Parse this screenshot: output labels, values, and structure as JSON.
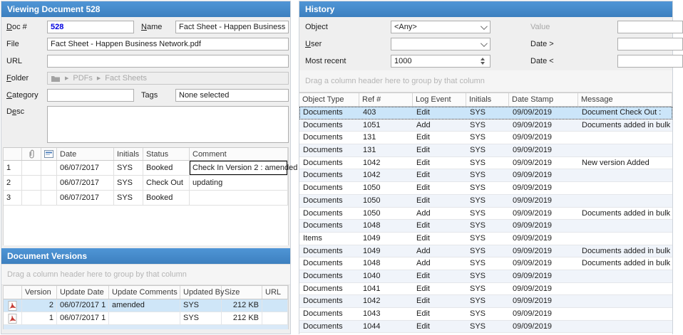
{
  "colors": {
    "titlebar_blue": "#3E86C6",
    "selection_blue": "#CBE5F9",
    "alt_row_blue": "#F0F4FA",
    "doc_number_blue": "#0000E0",
    "pdf_icon_red": "#C43C35"
  },
  "icons": {
    "breadcrumb_arrow": "▶"
  },
  "left_panel": {
    "title": "Viewing Document 528",
    "form": {
      "doc_label": "Doc #",
      "doc_value": "528",
      "name_label": "Name",
      "name_value": "Fact Sheet - Happen Business",
      "file_label": "File",
      "file_value": "Fact Sheet - Happen Business Network.pdf",
      "url_label": "URL",
      "url_value": "",
      "folder_label": "Folder",
      "folder_breadcrumb": [
        "PDFs",
        "Fact Sheets"
      ],
      "category_label": "Category",
      "category_value": "",
      "tags_label": "Tags",
      "tags_value": "None selected",
      "desc_label": "Desc",
      "desc_value": ""
    },
    "status_grid": {
      "headers": {
        "date": "Date",
        "initials": "Initials",
        "status": "Status",
        "comment": "Comment"
      },
      "rows": [
        {
          "num": "1",
          "date": "06/07/2017",
          "initials": "SYS",
          "status": "Booked",
          "comment": "Check In Version 2 : amended"
        },
        {
          "num": "2",
          "date": "06/07/2017",
          "initials": "SYS",
          "status": "Check Out",
          "comment": "updating"
        },
        {
          "num": "3",
          "date": "06/07/2017",
          "initials": "SYS",
          "status": "Booked",
          "comment": ""
        }
      ]
    },
    "versions": {
      "title": "Document Versions",
      "drag_hint": "Drag a column header here to group by that column",
      "headers": {
        "version": "Version",
        "update_date": "Update Date",
        "update_comments": "Update Comments",
        "updated_by": "Updated By",
        "size": "Size",
        "url": "URL"
      },
      "rows": [
        {
          "version": "2",
          "update_date": "06/07/2017 1",
          "update_comments": "amended",
          "updated_by": "SYS",
          "size": "212 KB",
          "url": ""
        },
        {
          "version": "1",
          "update_date": "06/07/2017 1",
          "update_comments": "",
          "updated_by": "SYS",
          "size": "212 KB",
          "url": ""
        }
      ]
    }
  },
  "right_panel": {
    "title": "History",
    "filters": {
      "object_label": "Object",
      "object_value": "<Any>",
      "user_label": "User",
      "user_value": "",
      "most_recent_label": "Most recent",
      "most_recent_value": "1000",
      "value_label": "Value",
      "value_value": "",
      "date_gt_label": "Date >",
      "date_gt_value": "",
      "date_lt_label": "Date <",
      "date_lt_value": ""
    },
    "drag_hint": "Drag a column header here to group by that column",
    "grid": {
      "headers": {
        "object_type": "Object Type",
        "ref": "Ref #",
        "log_event": "Log Event",
        "initials": "Initials",
        "date_stamp": "Date Stamp",
        "message": "Message"
      },
      "rows": [
        {
          "object_type": "Documents",
          "ref": "403",
          "log_event": "Edit",
          "initials": "SYS",
          "date_stamp": "09/09/2019",
          "message": "Document Check Out :"
        },
        {
          "object_type": "Documents",
          "ref": "1051",
          "log_event": "Add",
          "initials": "SYS",
          "date_stamp": "09/09/2019",
          "message": "Documents added in bulk"
        },
        {
          "object_type": "Documents",
          "ref": "131",
          "log_event": "Edit",
          "initials": "SYS",
          "date_stamp": "09/09/2019",
          "message": ""
        },
        {
          "object_type": "Documents",
          "ref": "131",
          "log_event": "Edit",
          "initials": "SYS",
          "date_stamp": "09/09/2019",
          "message": ""
        },
        {
          "object_type": "Documents",
          "ref": "1042",
          "log_event": "Edit",
          "initials": "SYS",
          "date_stamp": "09/09/2019",
          "message": "New version Added"
        },
        {
          "object_type": "Documents",
          "ref": "1042",
          "log_event": "Edit",
          "initials": "SYS",
          "date_stamp": "09/09/2019",
          "message": ""
        },
        {
          "object_type": "Documents",
          "ref": "1050",
          "log_event": "Edit",
          "initials": "SYS",
          "date_stamp": "09/09/2019",
          "message": ""
        },
        {
          "object_type": "Documents",
          "ref": "1050",
          "log_event": "Edit",
          "initials": "SYS",
          "date_stamp": "09/09/2019",
          "message": ""
        },
        {
          "object_type": "Documents",
          "ref": "1050",
          "log_event": "Add",
          "initials": "SYS",
          "date_stamp": "09/09/2019",
          "message": "Documents added in bulk"
        },
        {
          "object_type": "Documents",
          "ref": "1048",
          "log_event": "Edit",
          "initials": "SYS",
          "date_stamp": "09/09/2019",
          "message": ""
        },
        {
          "object_type": "Items",
          "ref": "1049",
          "log_event": "Edit",
          "initials": "SYS",
          "date_stamp": "09/09/2019",
          "message": ""
        },
        {
          "object_type": "Documents",
          "ref": "1049",
          "log_event": "Add",
          "initials": "SYS",
          "date_stamp": "09/09/2019",
          "message": "Documents added in bulk"
        },
        {
          "object_type": "Documents",
          "ref": "1048",
          "log_event": "Add",
          "initials": "SYS",
          "date_stamp": "09/09/2019",
          "message": "Documents added in bulk"
        },
        {
          "object_type": "Documents",
          "ref": "1040",
          "log_event": "Edit",
          "initials": "SYS",
          "date_stamp": "09/09/2019",
          "message": ""
        },
        {
          "object_type": "Documents",
          "ref": "1041",
          "log_event": "Edit",
          "initials": "SYS",
          "date_stamp": "09/09/2019",
          "message": ""
        },
        {
          "object_type": "Documents",
          "ref": "1042",
          "log_event": "Edit",
          "initials": "SYS",
          "date_stamp": "09/09/2019",
          "message": ""
        },
        {
          "object_type": "Documents",
          "ref": "1043",
          "log_event": "Edit",
          "initials": "SYS",
          "date_stamp": "09/09/2019",
          "message": ""
        },
        {
          "object_type": "Documents",
          "ref": "1044",
          "log_event": "Edit",
          "initials": "SYS",
          "date_stamp": "09/09/2019",
          "message": ""
        }
      ]
    }
  }
}
